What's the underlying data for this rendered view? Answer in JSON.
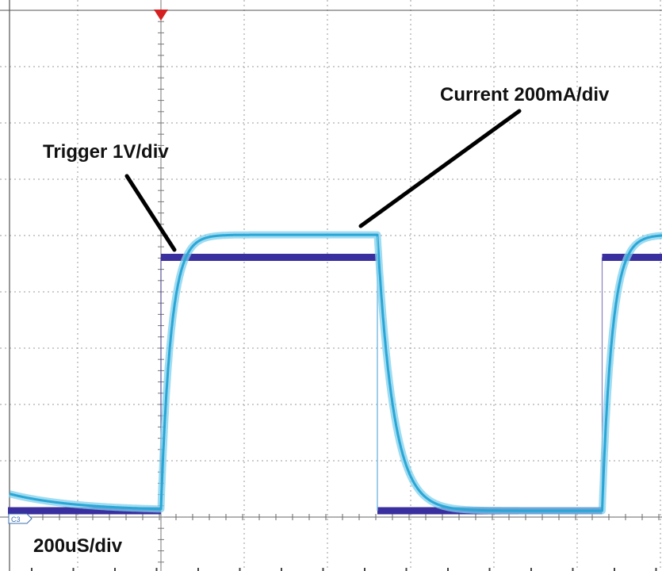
{
  "chart_data": {
    "type": "line",
    "annotations": {
      "trigger_label": "Trigger 1V/div",
      "current_label": "Current 200mA/div",
      "timebase_label": "200uS/div",
      "ground_marker": "C3"
    },
    "grid": true,
    "colors": {
      "trigger": "#3a2f9e",
      "current": "#2aa6d6",
      "current_halo": "#7fd0ec",
      "grid": "#9a9a9a",
      "trigger_marker": "#d42020"
    },
    "series": [
      {
        "id": "trigger",
        "unit": "V",
        "x_div": [
          -2,
          0,
          0,
          2.6,
          2.6,
          5.3,
          5.3,
          6.4
        ],
        "y_div": [
          0,
          0,
          4.5,
          4.5,
          0,
          0,
          4.5,
          4.5
        ]
      },
      {
        "id": "current",
        "unit": "mA",
        "high_div": 4.9,
        "low_div": 0,
        "edges_div": [
          {
            "t": 0,
            "dir": "rise"
          },
          {
            "t": 2.6,
            "dir": "fall"
          },
          {
            "t": 5.3,
            "dir": "rise"
          }
        ],
        "tau_div": 0.12
      }
    ]
  }
}
